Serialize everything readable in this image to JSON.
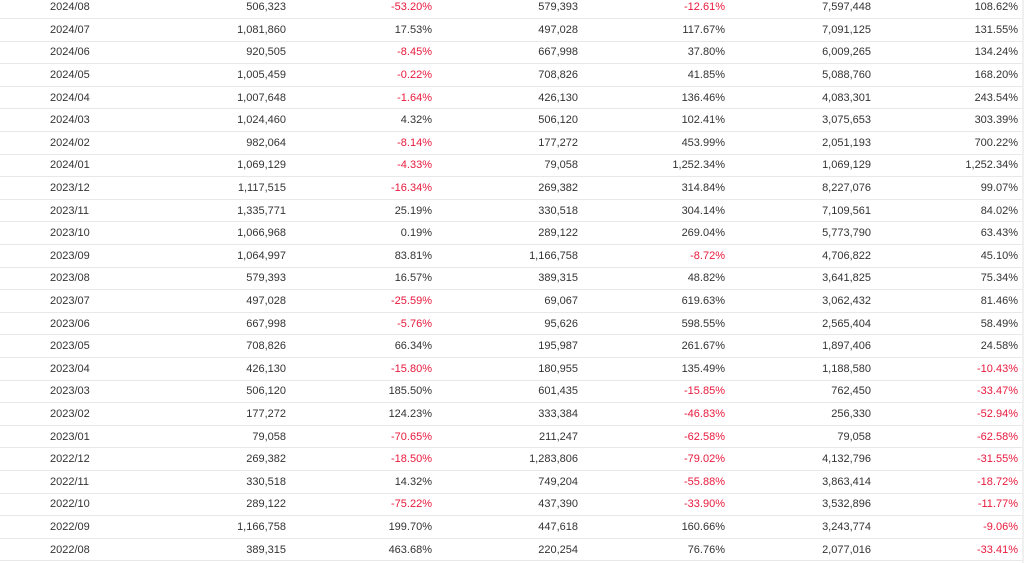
{
  "table": {
    "rows": [
      {
        "date": "2024/08",
        "v1": "506,323",
        "p1": "-53.20%",
        "v2": "579,393",
        "p2": "-12.61%",
        "v3": "7,597,448",
        "p3": "108.62%"
      },
      {
        "date": "2024/07",
        "v1": "1,081,860",
        "p1": "17.53%",
        "v2": "497,028",
        "p2": "117.67%",
        "v3": "7,091,125",
        "p3": "131.55%"
      },
      {
        "date": "2024/06",
        "v1": "920,505",
        "p1": "-8.45%",
        "v2": "667,998",
        "p2": "37.80%",
        "v3": "6,009,265",
        "p3": "134.24%"
      },
      {
        "date": "2024/05",
        "v1": "1,005,459",
        "p1": "-0.22%",
        "v2": "708,826",
        "p2": "41.85%",
        "v3": "5,088,760",
        "p3": "168.20%"
      },
      {
        "date": "2024/04",
        "v1": "1,007,648",
        "p1": "-1.64%",
        "v2": "426,130",
        "p2": "136.46%",
        "v3": "4,083,301",
        "p3": "243.54%"
      },
      {
        "date": "2024/03",
        "v1": "1,024,460",
        "p1": "4.32%",
        "v2": "506,120",
        "p2": "102.41%",
        "v3": "3,075,653",
        "p3": "303.39%"
      },
      {
        "date": "2024/02",
        "v1": "982,064",
        "p1": "-8.14%",
        "v2": "177,272",
        "p2": "453.99%",
        "v3": "2,051,193",
        "p3": "700.22%"
      },
      {
        "date": "2024/01",
        "v1": "1,069,129",
        "p1": "-4.33%",
        "v2": "79,058",
        "p2": "1,252.34%",
        "v3": "1,069,129",
        "p3": "1,252.34%"
      },
      {
        "date": "2023/12",
        "v1": "1,117,515",
        "p1": "-16.34%",
        "v2": "269,382",
        "p2": "314.84%",
        "v3": "8,227,076",
        "p3": "99.07%"
      },
      {
        "date": "2023/11",
        "v1": "1,335,771",
        "p1": "25.19%",
        "v2": "330,518",
        "p2": "304.14%",
        "v3": "7,109,561",
        "p3": "84.02%"
      },
      {
        "date": "2023/10",
        "v1": "1,066,968",
        "p1": "0.19%",
        "v2": "289,122",
        "p2": "269.04%",
        "v3": "5,773,790",
        "p3": "63.43%"
      },
      {
        "date": "2023/09",
        "v1": "1,064,997",
        "p1": "83.81%",
        "v2": "1,166,758",
        "p2": "-8.72%",
        "v3": "4,706,822",
        "p3": "45.10%"
      },
      {
        "date": "2023/08",
        "v1": "579,393",
        "p1": "16.57%",
        "v2": "389,315",
        "p2": "48.82%",
        "v3": "3,641,825",
        "p3": "75.34%"
      },
      {
        "date": "2023/07",
        "v1": "497,028",
        "p1": "-25.59%",
        "v2": "69,067",
        "p2": "619.63%",
        "v3": "3,062,432",
        "p3": "81.46%"
      },
      {
        "date": "2023/06",
        "v1": "667,998",
        "p1": "-5.76%",
        "v2": "95,626",
        "p2": "598.55%",
        "v3": "2,565,404",
        "p3": "58.49%"
      },
      {
        "date": "2023/05",
        "v1": "708,826",
        "p1": "66.34%",
        "v2": "195,987",
        "p2": "261.67%",
        "v3": "1,897,406",
        "p3": "24.58%"
      },
      {
        "date": "2023/04",
        "v1": "426,130",
        "p1": "-15.80%",
        "v2": "180,955",
        "p2": "135.49%",
        "v3": "1,188,580",
        "p3": "-10.43%"
      },
      {
        "date": "2023/03",
        "v1": "506,120",
        "p1": "185.50%",
        "v2": "601,435",
        "p2": "-15.85%",
        "v3": "762,450",
        "p3": "-33.47%"
      },
      {
        "date": "2023/02",
        "v1": "177,272",
        "p1": "124.23%",
        "v2": "333,384",
        "p2": "-46.83%",
        "v3": "256,330",
        "p3": "-52.94%"
      },
      {
        "date": "2023/01",
        "v1": "79,058",
        "p1": "-70.65%",
        "v2": "211,247",
        "p2": "-62.58%",
        "v3": "79,058",
        "p3": "-62.58%"
      },
      {
        "date": "2022/12",
        "v1": "269,382",
        "p1": "-18.50%",
        "v2": "1,283,806",
        "p2": "-79.02%",
        "v3": "4,132,796",
        "p3": "-31.55%"
      },
      {
        "date": "2022/11",
        "v1": "330,518",
        "p1": "14.32%",
        "v2": "749,204",
        "p2": "-55.88%",
        "v3": "3,863,414",
        "p3": "-18.72%"
      },
      {
        "date": "2022/10",
        "v1": "289,122",
        "p1": "-75.22%",
        "v2": "437,390",
        "p2": "-33.90%",
        "v3": "3,532,896",
        "p3": "-11.77%"
      },
      {
        "date": "2022/09",
        "v1": "1,166,758",
        "p1": "199.70%",
        "v2": "447,618",
        "p2": "160.66%",
        "v3": "3,243,774",
        "p3": "-9.06%"
      },
      {
        "date": "2022/08",
        "v1": "389,315",
        "p1": "463.68%",
        "v2": "220,254",
        "p2": "76.76%",
        "v3": "2,077,016",
        "p3": "-33.41%"
      }
    ]
  },
  "colors": {
    "negative": "#e8193c",
    "positive": "#333333",
    "row_border": "#e8e8e8"
  }
}
